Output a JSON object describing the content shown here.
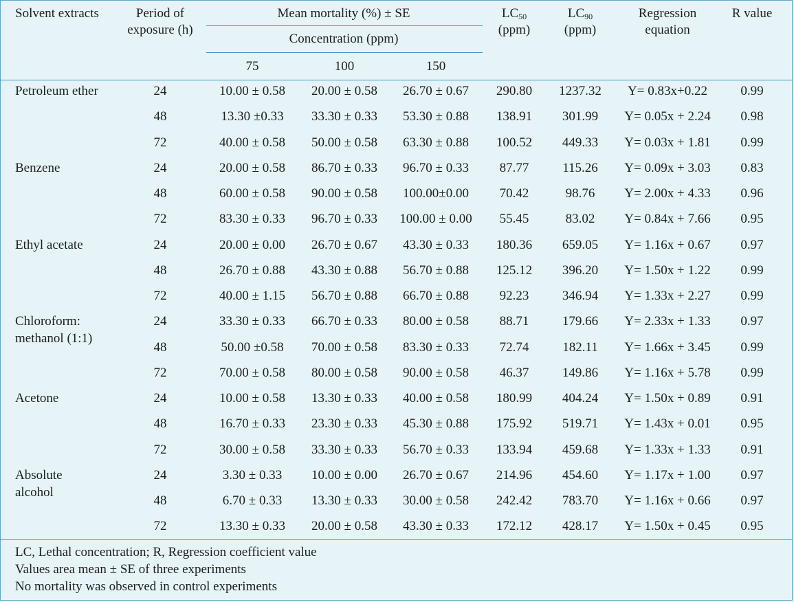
{
  "header": {
    "solvent": "Solvent extracts",
    "period_line1": "Period of",
    "period_line2": "exposure (h)",
    "mortality": "Mean mortality (%) ± SE",
    "concentration": "Concentration (ppm)",
    "conc_values": [
      "75",
      "100",
      "150"
    ],
    "lc50_main": "LC",
    "lc50_sub": "50",
    "lc50_unit": "(ppm)",
    "lc90_main": "LC",
    "lc90_sub": "90",
    "lc90_unit": "(ppm)",
    "regression_line1": "Regression",
    "regression_line2": "equation",
    "r_value": "R value"
  },
  "groups": [
    {
      "name_lines": [
        "Petroleum ether"
      ],
      "rows": [
        {
          "period": "24",
          "c75": "10.00 ± 0.58",
          "c100": "20.00 ± 0.58",
          "c150": "26.70 ± 0.67",
          "lc50": "290.80",
          "lc90": "1237.32",
          "eq": "Y= 0.83x+0.22",
          "r": "0.99"
        },
        {
          "period": "48",
          "c75": "13.30 ±0.33",
          "c100": "33.30 ± 0.33",
          "c150": "53.30 ± 0.88",
          "lc50": "138.91",
          "lc90": "301.99",
          "eq": "Y= 0.05x + 2.24",
          "r": "0.98"
        },
        {
          "period": "72",
          "c75": "40.00 ± 0.58",
          "c100": "50.00 ± 0.58",
          "c150": "63.30 ± 0.88",
          "lc50": "100.52",
          "lc90": "449.33",
          "eq": "Y= 0.03x + 1.81",
          "r": "0.99"
        }
      ]
    },
    {
      "name_lines": [
        "Benzene"
      ],
      "rows": [
        {
          "period": "24",
          "c75": "20.00 ± 0.58",
          "c100": "86.70 ± 0.33",
          "c150": "96.70 ± 0.33",
          "lc50": "87.77",
          "lc90": "115.26",
          "eq": "Y= 0.09x + 3.03",
          "r": "0.83"
        },
        {
          "period": "48",
          "c75": "60.00 ± 0.58",
          "c100": "90.00 ± 0.58",
          "c150": "100.00±0.00",
          "lc50": "70.42",
          "lc90": "98.76",
          "eq": "Y= 2.00x + 4.33",
          "r": "0.96"
        },
        {
          "period": "72",
          "c75": "83.30 ± 0.33",
          "c100": "96.70 ± 0.33",
          "c150": "100.00 ± 0.00",
          "lc50": "55.45",
          "lc90": "83.02",
          "eq": "Y= 0.84x + 7.66",
          "r": "0.95"
        }
      ]
    },
    {
      "name_lines": [
        "Ethyl acetate"
      ],
      "rows": [
        {
          "period": "24",
          "c75": "20.00 ± 0.00",
          "c100": "26.70 ± 0.67",
          "c150": "43.30 ± 0.33",
          "lc50": "180.36",
          "lc90": "659.05",
          "eq": "Y= 1.16x + 0.67",
          "r": "0.97"
        },
        {
          "period": "48",
          "c75": "26.70 ± 0.88",
          "c100": "43.30 ± 0.88",
          "c150": "56.70 ± 0.88",
          "lc50": "125.12",
          "lc90": "396.20",
          "eq": "Y= 1.50x + 1.22",
          "r": "0.99"
        },
        {
          "period": "72",
          "c75": "40.00 ± 1.15",
          "c100": "56.70 ± 0.88",
          "c150": "66.70 ± 0.88",
          "lc50": "92.23",
          "lc90": "346.94",
          "eq": "Y= 1.33x + 2.27",
          "r": "0.99"
        }
      ]
    },
    {
      "name_lines": [
        "Chloroform:",
        "methanol (1:1)"
      ],
      "rows": [
        {
          "period": "24",
          "c75": "33.30 ± 0.33",
          "c100": "66.70 ± 0.33",
          "c150": "80.00 ± 0.58",
          "lc50": "88.71",
          "lc90": "179.66",
          "eq": "Y= 2.33x + 1.33",
          "r": "0.97"
        },
        {
          "period": "48",
          "c75": "50.00 ±0.58",
          "c100": "70.00 ± 0.58",
          "c150": "83.30 ± 0.33",
          "lc50": "72.74",
          "lc90": "182.11",
          "eq": "Y= 1.66x + 3.45",
          "r": "0.99"
        },
        {
          "period": "72",
          "c75": "70.00 ± 0.58",
          "c100": "80.00 ± 0.58",
          "c150": "90.00 ± 0.58",
          "lc50": "46.37",
          "lc90": "149.86",
          "eq": "Y= 1.16x + 5.78",
          "r": "0.99"
        }
      ]
    },
    {
      "name_lines": [
        "Acetone"
      ],
      "rows": [
        {
          "period": "24",
          "c75": "10.00 ± 0.58",
          "c100": "13.30 ± 0.33",
          "c150": "40.00 ± 0.58",
          "lc50": "180.99",
          "lc90": "404.24",
          "eq": "Y= 1.50x + 0.89",
          "r": "0.91"
        },
        {
          "period": "48",
          "c75": "16.70 ± 0.33",
          "c100": "23.30 ± 0.33",
          "c150": "45.30 ± 0.88",
          "lc50": "175.92",
          "lc90": "519.71",
          "eq": "Y= 1.43x + 0.01",
          "r": "0.95"
        },
        {
          "period": "72",
          "c75": "30.00 ± 0.58",
          "c100": "33.30 ± 0.33",
          "c150": "56.70 ± 0.33",
          "lc50": "133.94",
          "lc90": "459.68",
          "eq": "Y= 1.33x + 1.33",
          "r": "0.91"
        }
      ]
    },
    {
      "name_lines": [
        "Absolute",
        "alcohol"
      ],
      "rows": [
        {
          "period": "24",
          "c75": "3.30 ± 0.33",
          "c100": "10.00 ± 0.00",
          "c150": "26.70 ± 0.67",
          "lc50": "214.96",
          "lc90": "454.60",
          "eq": "Y= 1.17x + 1.00",
          "r": "0.97"
        },
        {
          "period": "48",
          "c75": "6.70 ± 0.33",
          "c100": "13.30 ± 0.33",
          "c150": "30.00 ± 0.58",
          "lc50": "242.42",
          "lc90": "783.70",
          "eq": "Y= 1.16x + 0.66",
          "r": "0.97"
        },
        {
          "period": "72",
          "c75": "13.30 ± 0.33",
          "c100": "20.00 ± 0.58",
          "c150": "43.30 ± 0.33",
          "lc50": "172.12",
          "lc90": "428.17",
          "eq": "Y= 1.50x + 0.45",
          "r": "0.95"
        }
      ]
    }
  ],
  "footnotes": [
    "LC, Lethal concentration; R, Regression coefficient value",
    "Values area mean ± SE of three experiments",
    "No mortality was observed in control experiments"
  ]
}
